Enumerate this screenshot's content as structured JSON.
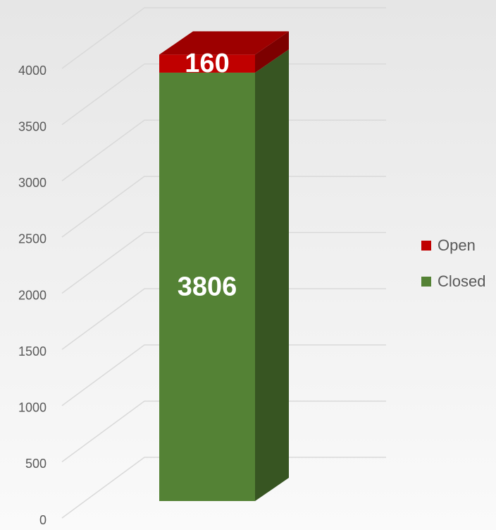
{
  "chart_data": {
    "type": "bar3d_stacked",
    "categories": [
      null
    ],
    "series": [
      {
        "name": "Closed",
        "color": "#548235",
        "values": [
          3806
        ]
      },
      {
        "name": "Open",
        "color": "#c00000",
        "values": [
          160
        ]
      }
    ],
    "ylim": [
      0,
      4000
    ],
    "yticks": [
      0,
      500,
      1000,
      1500,
      2000,
      2500,
      3000,
      3500,
      4000
    ],
    "grid": true,
    "legend": "right"
  }
}
